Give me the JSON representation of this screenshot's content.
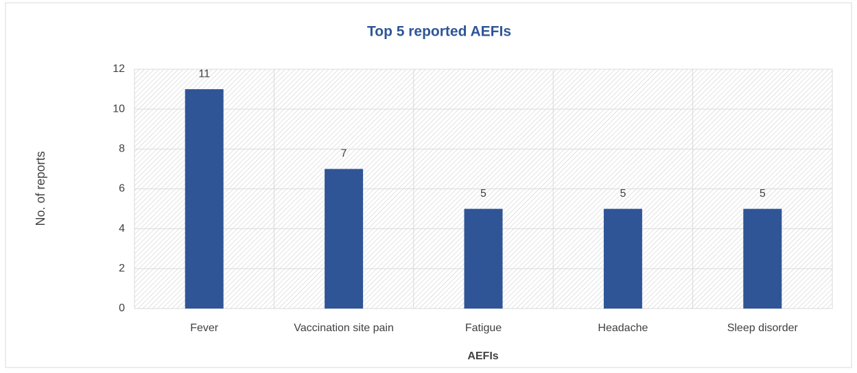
{
  "chart_data": {
    "type": "bar",
    "title": "Top 5 reported AEFIs",
    "x_label": "AEFIs",
    "y_label": "No. of reports",
    "categories": [
      "Fever",
      "Vaccination site pain",
      "Fatigue",
      "Headache",
      "Sleep disorder"
    ],
    "values": [
      11,
      7,
      5,
      5,
      5
    ],
    "color": "#2f5597",
    "ylim": [
      0,
      12
    ],
    "yticks": [
      0,
      2,
      4,
      6,
      8,
      10,
      12
    ],
    "grid": true,
    "data_labels": true
  }
}
